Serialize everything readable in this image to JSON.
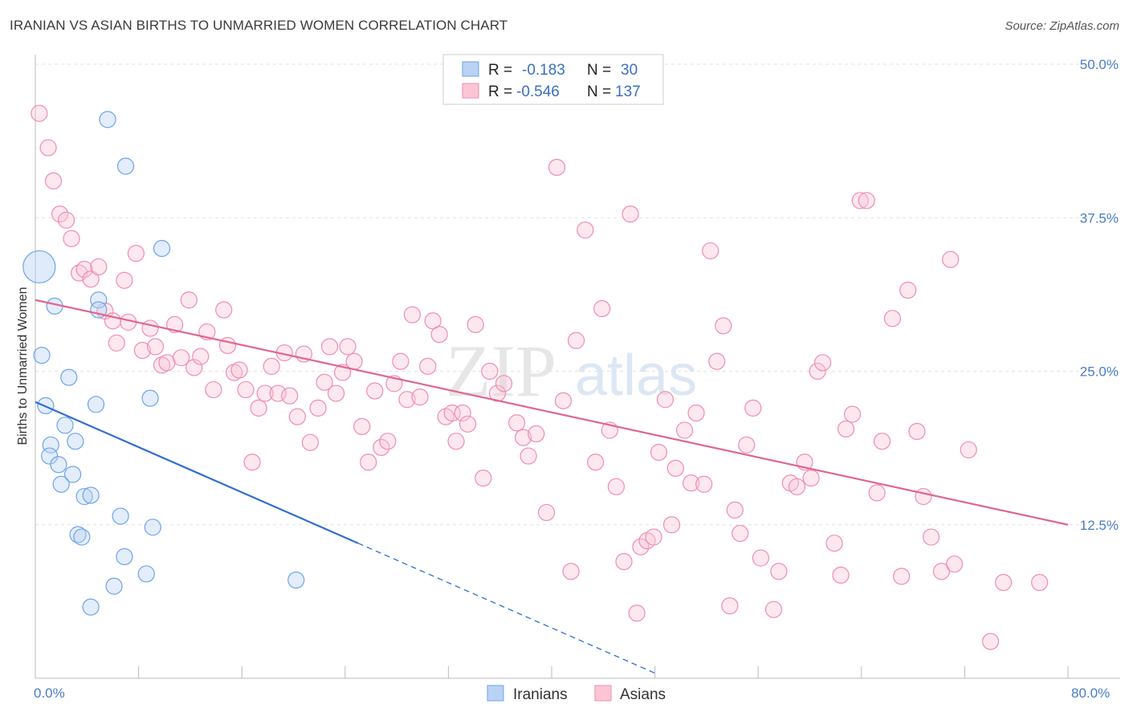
{
  "title": "IRANIAN VS ASIAN BIRTHS TO UNMARRIED WOMEN CORRELATION CHART",
  "source": "Source: ZipAtlas.com",
  "watermark": {
    "zip": "ZIP",
    "atlas": "atlas"
  },
  "legend_box": {
    "rows": [
      {
        "r_label": "R =",
        "r_value": "-0.183",
        "n_label": "N =",
        "n_value": "30"
      },
      {
        "r_label": "R =",
        "r_value": "-0.546",
        "n_label": "N =",
        "n_value": "137"
      }
    ]
  },
  "chart_data": {
    "type": "scatter",
    "title": "IRANIAN VS ASIAN BIRTHS TO UNMARRIED WOMEN CORRELATION CHART",
    "xlabel": "",
    "ylabel": "Births to Unmarried Women",
    "xlim": [
      0,
      80
    ],
    "ylim": [
      0,
      50
    ],
    "x_tick_labels": [
      "0.0%",
      "80.0%"
    ],
    "y_ticks": [
      12.5,
      25.0,
      37.5,
      50.0
    ],
    "y_tick_labels": [
      "12.5%",
      "25.0%",
      "37.5%",
      "50.0%"
    ],
    "grid": true,
    "legend_position": "top-center",
    "colors": {
      "iranians": "#6fa3e8",
      "asians": "#f08caf",
      "iran_line": "#2f6fcf",
      "asia_line": "#e0668f"
    },
    "series": [
      {
        "name": "Iranians",
        "r": -0.183,
        "n": 30,
        "trend": {
          "x0": 0,
          "y0": 22.5,
          "x1": 25,
          "y1": 11.0,
          "dash_to_x": 48
        },
        "points": [
          {
            "x": 0.3,
            "y": 33.5,
            "big": true
          },
          {
            "x": 5.6,
            "y": 45.5
          },
          {
            "x": 7.0,
            "y": 41.7
          },
          {
            "x": 9.8,
            "y": 35.0
          },
          {
            "x": 1.5,
            "y": 30.3
          },
          {
            "x": 4.9,
            "y": 30.8
          },
          {
            "x": 4.9,
            "y": 30.0
          },
          {
            "x": 0.5,
            "y": 26.3
          },
          {
            "x": 2.6,
            "y": 24.5
          },
          {
            "x": 0.8,
            "y": 22.2
          },
          {
            "x": 4.7,
            "y": 22.3
          },
          {
            "x": 8.9,
            "y": 22.8
          },
          {
            "x": 2.3,
            "y": 20.6
          },
          {
            "x": 3.1,
            "y": 19.3
          },
          {
            "x": 1.2,
            "y": 19.0
          },
          {
            "x": 1.1,
            "y": 18.1
          },
          {
            "x": 1.8,
            "y": 17.4
          },
          {
            "x": 2.9,
            "y": 16.6
          },
          {
            "x": 2.0,
            "y": 15.8
          },
          {
            "x": 3.8,
            "y": 14.8
          },
          {
            "x": 4.3,
            "y": 14.9
          },
          {
            "x": 6.6,
            "y": 13.2
          },
          {
            "x": 9.1,
            "y": 12.3
          },
          {
            "x": 3.3,
            "y": 11.7
          },
          {
            "x": 3.6,
            "y": 11.5
          },
          {
            "x": 6.9,
            "y": 9.9
          },
          {
            "x": 8.6,
            "y": 8.5
          },
          {
            "x": 6.1,
            "y": 7.5
          },
          {
            "x": 20.2,
            "y": 8.0
          },
          {
            "x": 4.3,
            "y": 5.8
          }
        ]
      },
      {
        "name": "Asians",
        "r": -0.546,
        "n": 137,
        "trend": {
          "x0": 0,
          "y0": 30.8,
          "x1": 80,
          "y1": 12.5
        },
        "points": [
          {
            "x": 0.3,
            "y": 46.0
          },
          {
            "x": 1.0,
            "y": 43.2
          },
          {
            "x": 1.4,
            "y": 40.5
          },
          {
            "x": 1.9,
            "y": 37.8
          },
          {
            "x": 2.4,
            "y": 37.3
          },
          {
            "x": 2.8,
            "y": 35.8
          },
          {
            "x": 3.4,
            "y": 33.0
          },
          {
            "x": 3.8,
            "y": 33.3
          },
          {
            "x": 4.3,
            "y": 32.5
          },
          {
            "x": 4.9,
            "y": 33.5
          },
          {
            "x": 5.4,
            "y": 29.9
          },
          {
            "x": 6.0,
            "y": 29.1
          },
          {
            "x": 6.3,
            "y": 27.3
          },
          {
            "x": 6.9,
            "y": 32.4
          },
          {
            "x": 7.2,
            "y": 29.0
          },
          {
            "x": 7.8,
            "y": 34.6
          },
          {
            "x": 8.3,
            "y": 26.7
          },
          {
            "x": 8.9,
            "y": 28.5
          },
          {
            "x": 9.3,
            "y": 27.0
          },
          {
            "x": 9.8,
            "y": 25.5
          },
          {
            "x": 10.2,
            "y": 25.7
          },
          {
            "x": 10.8,
            "y": 28.8
          },
          {
            "x": 11.3,
            "y": 26.1
          },
          {
            "x": 11.9,
            "y": 30.8
          },
          {
            "x": 12.3,
            "y": 25.3
          },
          {
            "x": 12.8,
            "y": 26.2
          },
          {
            "x": 13.3,
            "y": 28.2
          },
          {
            "x": 13.8,
            "y": 23.5
          },
          {
            "x": 14.6,
            "y": 30.0
          },
          {
            "x": 14.9,
            "y": 27.1
          },
          {
            "x": 15.4,
            "y": 24.9
          },
          {
            "x": 15.8,
            "y": 25.1
          },
          {
            "x": 16.3,
            "y": 23.5
          },
          {
            "x": 16.8,
            "y": 17.6
          },
          {
            "x": 17.3,
            "y": 22.0
          },
          {
            "x": 17.8,
            "y": 23.2
          },
          {
            "x": 18.3,
            "y": 25.4
          },
          {
            "x": 18.8,
            "y": 23.2
          },
          {
            "x": 19.3,
            "y": 26.5
          },
          {
            "x": 19.7,
            "y": 23.0
          },
          {
            "x": 20.3,
            "y": 21.3
          },
          {
            "x": 20.8,
            "y": 26.4
          },
          {
            "x": 21.3,
            "y": 19.2
          },
          {
            "x": 21.9,
            "y": 22.0
          },
          {
            "x": 22.4,
            "y": 24.1
          },
          {
            "x": 22.8,
            "y": 27.0
          },
          {
            "x": 23.3,
            "y": 23.2
          },
          {
            "x": 23.8,
            "y": 24.9
          },
          {
            "x": 24.2,
            "y": 27.0
          },
          {
            "x": 24.7,
            "y": 25.8
          },
          {
            "x": 25.3,
            "y": 20.5
          },
          {
            "x": 25.8,
            "y": 17.6
          },
          {
            "x": 26.3,
            "y": 23.4
          },
          {
            "x": 26.8,
            "y": 18.8
          },
          {
            "x": 27.3,
            "y": 19.3
          },
          {
            "x": 27.8,
            "y": 24.0
          },
          {
            "x": 28.3,
            "y": 25.8
          },
          {
            "x": 28.8,
            "y": 22.7
          },
          {
            "x": 29.2,
            "y": 29.6
          },
          {
            "x": 29.8,
            "y": 22.9
          },
          {
            "x": 30.4,
            "y": 25.4
          },
          {
            "x": 30.8,
            "y": 29.1
          },
          {
            "x": 31.3,
            "y": 28.0
          },
          {
            "x": 31.8,
            "y": 21.3
          },
          {
            "x": 32.3,
            "y": 21.6
          },
          {
            "x": 32.6,
            "y": 19.3
          },
          {
            "x": 33.1,
            "y": 21.6
          },
          {
            "x": 33.5,
            "y": 20.7
          },
          {
            "x": 34.1,
            "y": 28.8
          },
          {
            "x": 34.7,
            "y": 16.3
          },
          {
            "x": 35.2,
            "y": 25.0
          },
          {
            "x": 35.8,
            "y": 23.2
          },
          {
            "x": 36.3,
            "y": 24.0
          },
          {
            "x": 37.3,
            "y": 20.8
          },
          {
            "x": 37.8,
            "y": 19.6
          },
          {
            "x": 38.2,
            "y": 18.1
          },
          {
            "x": 38.8,
            "y": 19.9
          },
          {
            "x": 39.6,
            "y": 13.5
          },
          {
            "x": 40.4,
            "y": 41.6
          },
          {
            "x": 40.9,
            "y": 22.6
          },
          {
            "x": 41.5,
            "y": 8.7
          },
          {
            "x": 41.9,
            "y": 27.5
          },
          {
            "x": 42.6,
            "y": 36.5
          },
          {
            "x": 43.4,
            "y": 17.6
          },
          {
            "x": 43.9,
            "y": 30.1
          },
          {
            "x": 44.5,
            "y": 20.2
          },
          {
            "x": 45.0,
            "y": 15.6
          },
          {
            "x": 45.6,
            "y": 9.5
          },
          {
            "x": 46.1,
            "y": 37.8
          },
          {
            "x": 46.6,
            "y": 5.3
          },
          {
            "x": 46.9,
            "y": 10.7
          },
          {
            "x": 47.4,
            "y": 11.2
          },
          {
            "x": 47.9,
            "y": 11.5
          },
          {
            "x": 48.3,
            "y": 18.4
          },
          {
            "x": 48.8,
            "y": 22.7
          },
          {
            "x": 49.3,
            "y": 12.5
          },
          {
            "x": 49.6,
            "y": 17.1
          },
          {
            "x": 50.3,
            "y": 20.2
          },
          {
            "x": 50.8,
            "y": 15.9
          },
          {
            "x": 51.2,
            "y": 21.6
          },
          {
            "x": 51.8,
            "y": 15.8
          },
          {
            "x": 52.3,
            "y": 34.8
          },
          {
            "x": 52.8,
            "y": 25.8
          },
          {
            "x": 53.3,
            "y": 28.7
          },
          {
            "x": 53.8,
            "y": 5.9
          },
          {
            "x": 54.2,
            "y": 13.7
          },
          {
            "x": 54.6,
            "y": 11.8
          },
          {
            "x": 55.1,
            "y": 19.0
          },
          {
            "x": 55.6,
            "y": 22.0
          },
          {
            "x": 56.2,
            "y": 9.8
          },
          {
            "x": 57.2,
            "y": 5.6
          },
          {
            "x": 57.6,
            "y": 8.7
          },
          {
            "x": 58.5,
            "y": 15.9
          },
          {
            "x": 59.0,
            "y": 15.6
          },
          {
            "x": 59.6,
            "y": 17.6
          },
          {
            "x": 60.1,
            "y": 16.3
          },
          {
            "x": 60.6,
            "y": 25.0
          },
          {
            "x": 61.0,
            "y": 25.7
          },
          {
            "x": 61.9,
            "y": 11.0
          },
          {
            "x": 62.4,
            "y": 8.4
          },
          {
            "x": 62.8,
            "y": 20.3
          },
          {
            "x": 63.3,
            "y": 21.5
          },
          {
            "x": 63.9,
            "y": 38.9
          },
          {
            "x": 64.4,
            "y": 38.9
          },
          {
            "x": 65.2,
            "y": 15.1
          },
          {
            "x": 65.6,
            "y": 19.3
          },
          {
            "x": 66.4,
            "y": 29.3
          },
          {
            "x": 67.1,
            "y": 8.3
          },
          {
            "x": 67.6,
            "y": 31.6
          },
          {
            "x": 68.3,
            "y": 20.1
          },
          {
            "x": 68.8,
            "y": 14.8
          },
          {
            "x": 69.4,
            "y": 11.5
          },
          {
            "x": 70.2,
            "y": 8.7
          },
          {
            "x": 70.9,
            "y": 34.1
          },
          {
            "x": 71.2,
            "y": 9.3
          },
          {
            "x": 72.3,
            "y": 18.6
          },
          {
            "x": 74.0,
            "y": 3.0
          },
          {
            "x": 75.0,
            "y": 7.8
          },
          {
            "x": 77.8,
            "y": 7.8
          }
        ]
      }
    ]
  },
  "bottom_legend": {
    "iranians": "Iranians",
    "asians": "Asians"
  }
}
